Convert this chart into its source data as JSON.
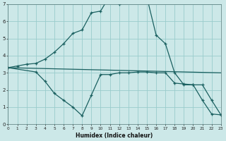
{
  "xlabel": "Humidex (Indice chaleur)",
  "bg_color": "#cce8e8",
  "grid_color": "#99cccc",
  "line_color": "#1a6060",
  "x_min": 0,
  "x_max": 23,
  "y_min": 0,
  "y_max": 7,
  "line1_x": [
    0,
    1,
    2,
    3,
    4,
    5,
    6,
    7,
    8,
    9,
    10,
    11,
    12,
    13,
    14,
    15,
    16,
    17,
    18,
    19,
    20,
    21,
    22,
    23
  ],
  "line1_y": [
    3.3,
    3.4,
    3.5,
    3.55,
    3.8,
    4.2,
    4.7,
    5.3,
    5.5,
    6.5,
    6.6,
    7.5,
    7.0,
    7.5,
    7.4,
    7.4,
    5.2,
    4.7,
    3.0,
    2.3,
    2.3,
    1.4,
    0.6,
    0.55
  ],
  "line2_x": [
    0,
    3,
    4,
    5,
    6,
    7,
    8,
    9,
    10,
    11,
    12,
    13,
    14,
    15,
    16,
    17,
    18,
    19,
    20,
    21,
    22,
    23
  ],
  "line2_y": [
    3.3,
    3.05,
    2.5,
    1.8,
    1.4,
    1.0,
    0.5,
    1.7,
    2.9,
    2.9,
    3.0,
    3.0,
    3.05,
    3.05,
    3.0,
    3.0,
    2.4,
    2.35,
    2.3,
    2.3,
    1.4,
    0.55
  ],
  "line3_x": [
    0,
    23
  ],
  "line3_y": [
    3.3,
    3.0
  ]
}
